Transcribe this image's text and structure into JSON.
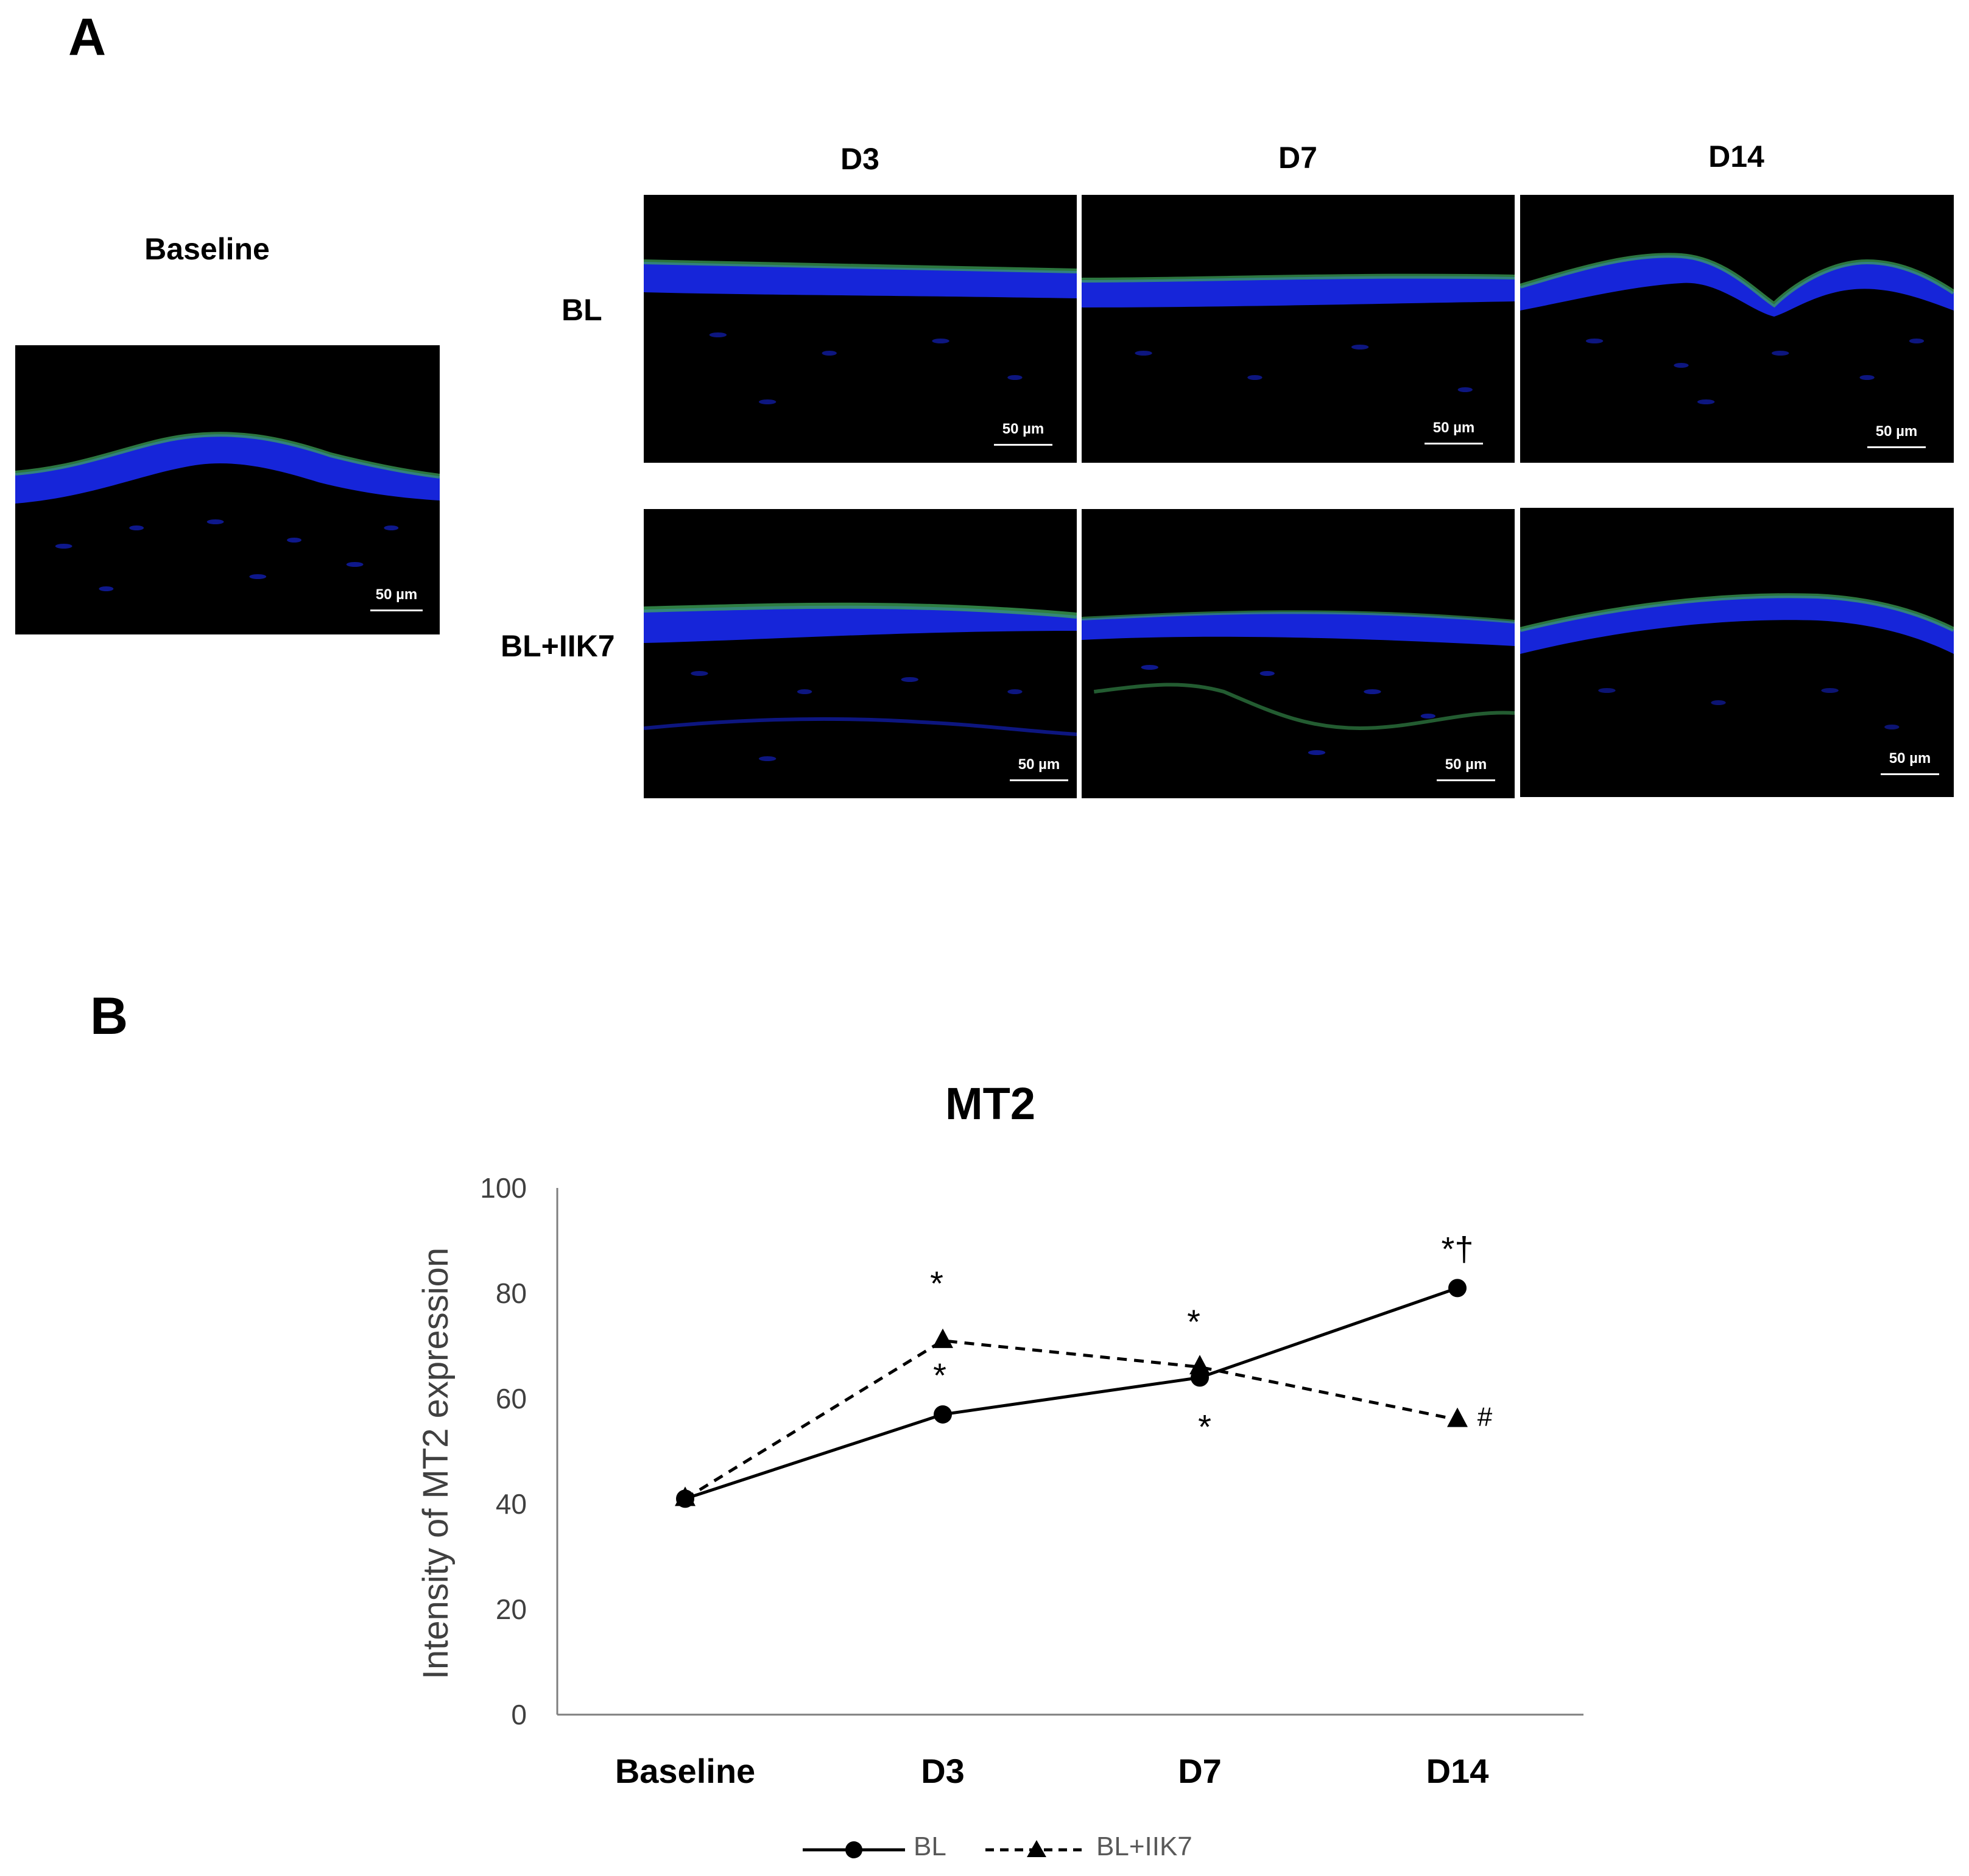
{
  "panelA": {
    "letter": "A",
    "baseline_title": "Baseline",
    "columns": [
      "D3",
      "D7",
      "D14"
    ],
    "rows": [
      "BL",
      "BL+IIK7"
    ],
    "scale_bar_label": "50 µm",
    "colors": {
      "nuclei": "#1a2cff",
      "mt2": "#3fa85a",
      "background": "#000000"
    }
  },
  "panelB": {
    "letter": "B"
  },
  "chart_data": {
    "type": "line",
    "title": "MT2",
    "ylabel": "Intensity of MT2 expression",
    "xlabel": "",
    "categories": [
      "Baseline",
      "D3",
      "D7",
      "D14"
    ],
    "ylim": [
      0,
      100
    ],
    "yticks": [
      0,
      20,
      40,
      60,
      80,
      100
    ],
    "grid": false,
    "legend_position": "bottom",
    "series": [
      {
        "name": "BL",
        "values": [
          41,
          57,
          64,
          81
        ],
        "marker": "circle",
        "line": "solid",
        "color": "#000000"
      },
      {
        "name": "BL+IIK7",
        "values": [
          41,
          71,
          66,
          56
        ],
        "marker": "triangle",
        "line": "dashed",
        "color": "#000000"
      }
    ],
    "annotations": [
      {
        "text": "*",
        "category": "D3",
        "series": "BL+IIK7"
      },
      {
        "text": "*",
        "category": "D3",
        "series": "BL"
      },
      {
        "text": "*",
        "category": "D7",
        "series": "BL+IIK7"
      },
      {
        "text": "*",
        "category": "D7",
        "series": "BL"
      },
      {
        "text": "*†",
        "category": "D14",
        "series": "BL"
      },
      {
        "text": "#",
        "category": "D14",
        "series": "BL+IIK7"
      }
    ]
  }
}
